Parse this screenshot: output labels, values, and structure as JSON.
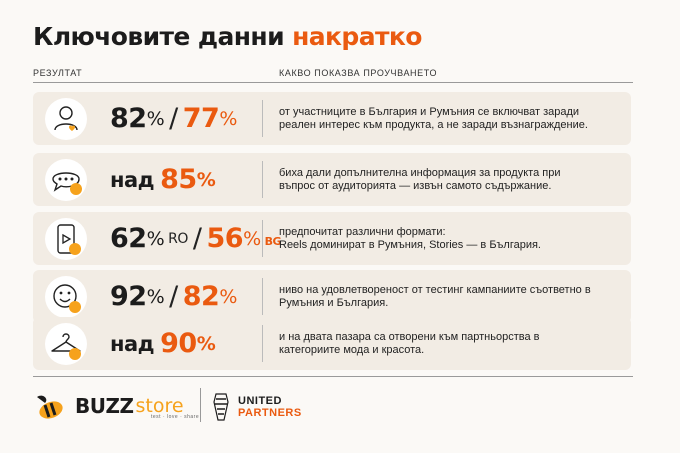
{
  "title": {
    "main": "Ключовите данни ",
    "accent": "накратко"
  },
  "columns": {
    "result": "РЕЗУЛТАТ",
    "shows": "КАКВО ПОКАЗВА ПРОУЧВАНЕТО"
  },
  "rows": [
    {
      "icon": "user-heart-icon",
      "a": "82",
      "a_pct": "%",
      "sep": "/",
      "b": "77",
      "b_pct": "%",
      "desc": "от участниците в България и Румъния се включват заради реален интерес към продукта, а не заради възнаграждение."
    },
    {
      "icon": "chat-bubble-icon",
      "prefix": "над ",
      "a": "85",
      "a_pct": "%",
      "desc": "биха дали допълнителна информация за продукта при въпрос от аудиторията — извън самото съдържание."
    },
    {
      "icon": "phone-video-icon",
      "a": "62",
      "a_pct": "%",
      "a_cc": "RO",
      "sep": "/",
      "b": "56",
      "b_pct": "%",
      "b_cc": "BG",
      "desc_line1": "предпочитат различни формати:",
      "desc_line2": "Reels доминират в Румъния, Stories — в България."
    },
    {
      "icon": "smiley-face-icon",
      "a": "92",
      "a_pct": "%",
      "sep": "/",
      "b": "82",
      "b_pct": "%",
      "desc": "ниво на удовлетвореност от тестинг кампаниите съответно в Румъния и България."
    },
    {
      "icon": "hanger-icon",
      "prefix": "над ",
      "a": "90",
      "a_pct": "%",
      "desc": "и на двата пазара са отворени към партньорства в категориите мода и красота."
    }
  ],
  "footer": {
    "buzz": "BUZZ",
    "store": "store",
    "tagline": "test · love · share",
    "partner_l1": "UNITED",
    "partner_l2": "PARTNERS"
  },
  "colors": {
    "accent": "#ea5a10",
    "dot": "#f6a21c",
    "row_bg": "#f2ece4"
  }
}
